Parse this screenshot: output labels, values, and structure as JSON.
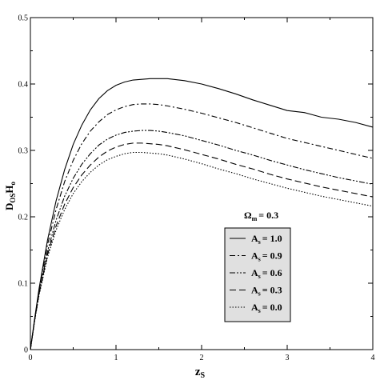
{
  "chart_data": {
    "type": "line",
    "xlabel_main": "z",
    "xlabel_sub": "S",
    "ylabel_main": "D",
    "ylabel_sub1": "OS",
    "ylabel_mid": "H",
    "ylabel_sub2": "o",
    "xlim": [
      0,
      4
    ],
    "ylim": [
      0,
      0.5
    ],
    "x_ticks": [
      0,
      1,
      2,
      3,
      4
    ],
    "x_tick_labels": [
      "0",
      "1",
      "2",
      "3",
      "4"
    ],
    "y_ticks": [
      0,
      0.1,
      0.2,
      0.3,
      0.4,
      0.5
    ],
    "y_tick_labels": [
      "0",
      "0.1",
      "0.2",
      "0.3",
      "0.4",
      "0.5"
    ],
    "grid": false,
    "legend_title_main": "Ω",
    "legend_title_sub": "m",
    "legend_title_value": "= 0.3",
    "legend_position": "right",
    "series": [
      {
        "label_main": "A",
        "label_sub": "s",
        "label_value": "= 1.0",
        "dash": "solid",
        "x": [
          0,
          0.05,
          0.1,
          0.2,
          0.3,
          0.4,
          0.5,
          0.6,
          0.7,
          0.8,
          0.9,
          1.0,
          1.1,
          1.2,
          1.3,
          1.4,
          1.5,
          1.6,
          1.8,
          2.0,
          2.2,
          2.4,
          2.6,
          2.8,
          3.0,
          3.2,
          3.4,
          3.6,
          3.8,
          4.0
        ],
        "y": [
          0,
          0.047,
          0.091,
          0.165,
          0.224,
          0.271,
          0.309,
          0.338,
          0.361,
          0.378,
          0.39,
          0.398,
          0.403,
          0.406,
          0.407,
          0.408,
          0.408,
          0.408,
          0.405,
          0.4,
          0.393,
          0.385,
          0.376,
          0.368,
          0.36,
          0.357,
          0.35,
          0.347,
          0.342,
          0.335
        ]
      },
      {
        "label_main": "A",
        "label_sub": "s",
        "label_value": "= 0.9",
        "dash": "dash-dot",
        "x": [
          0,
          0.05,
          0.1,
          0.2,
          0.3,
          0.4,
          0.5,
          0.6,
          0.7,
          0.8,
          0.9,
          1.0,
          1.1,
          1.2,
          1.3,
          1.4,
          1.5,
          1.6,
          1.8,
          2.0,
          2.2,
          2.4,
          2.6,
          2.8,
          3.0,
          3.2,
          3.4,
          3.6,
          3.8,
          4.0
        ],
        "y": [
          0,
          0.046,
          0.088,
          0.158,
          0.211,
          0.253,
          0.285,
          0.31,
          0.329,
          0.343,
          0.354,
          0.361,
          0.366,
          0.369,
          0.37,
          0.37,
          0.369,
          0.367,
          0.362,
          0.356,
          0.349,
          0.342,
          0.334,
          0.326,
          0.318,
          0.312,
          0.306,
          0.3,
          0.294,
          0.288
        ]
      },
      {
        "label_main": "A",
        "label_sub": "s",
        "label_value": "= 0.6",
        "dash": "dash-dot-dot",
        "x": [
          0,
          0.05,
          0.1,
          0.2,
          0.3,
          0.4,
          0.5,
          0.6,
          0.7,
          0.8,
          0.9,
          1.0,
          1.1,
          1.2,
          1.3,
          1.4,
          1.5,
          1.6,
          1.8,
          2.0,
          2.2,
          2.4,
          2.6,
          2.8,
          3.0,
          3.2,
          3.4,
          3.6,
          3.8,
          4.0
        ],
        "y": [
          0,
          0.045,
          0.085,
          0.148,
          0.195,
          0.231,
          0.258,
          0.279,
          0.295,
          0.308,
          0.317,
          0.323,
          0.327,
          0.329,
          0.33,
          0.33,
          0.329,
          0.327,
          0.322,
          0.315,
          0.308,
          0.3,
          0.293,
          0.285,
          0.278,
          0.271,
          0.265,
          0.259,
          0.254,
          0.249
        ]
      },
      {
        "label_main": "A",
        "label_sub": "s",
        "label_value": "= 0.3",
        "dash": "dashed",
        "x": [
          0,
          0.05,
          0.1,
          0.2,
          0.3,
          0.4,
          0.5,
          0.6,
          0.7,
          0.8,
          0.9,
          1.0,
          1.1,
          1.2,
          1.3,
          1.4,
          1.5,
          1.6,
          1.8,
          2.0,
          2.2,
          2.4,
          2.6,
          2.8,
          3.0,
          3.2,
          3.4,
          3.6,
          3.8,
          4.0
        ],
        "y": [
          0,
          0.044,
          0.083,
          0.143,
          0.186,
          0.219,
          0.244,
          0.263,
          0.278,
          0.29,
          0.299,
          0.305,
          0.309,
          0.311,
          0.311,
          0.31,
          0.309,
          0.307,
          0.301,
          0.294,
          0.287,
          0.279,
          0.272,
          0.264,
          0.257,
          0.251,
          0.245,
          0.24,
          0.235,
          0.23
        ]
      },
      {
        "label_main": "A",
        "label_sub": "s",
        "label_value": "= 0.0",
        "dash": "dotted",
        "x": [
          0,
          0.05,
          0.1,
          0.2,
          0.3,
          0.4,
          0.5,
          0.6,
          0.7,
          0.8,
          0.9,
          1.0,
          1.1,
          1.2,
          1.3,
          1.4,
          1.5,
          1.6,
          1.8,
          2.0,
          2.2,
          2.4,
          2.6,
          2.8,
          3.0,
          3.2,
          3.4,
          3.6,
          3.8,
          4.0
        ],
        "y": [
          0,
          0.043,
          0.081,
          0.139,
          0.18,
          0.211,
          0.235,
          0.253,
          0.267,
          0.278,
          0.286,
          0.291,
          0.295,
          0.297,
          0.297,
          0.296,
          0.295,
          0.293,
          0.287,
          0.28,
          0.272,
          0.265,
          0.257,
          0.25,
          0.243,
          0.237,
          0.231,
          0.226,
          0.221,
          0.216
        ]
      }
    ]
  }
}
